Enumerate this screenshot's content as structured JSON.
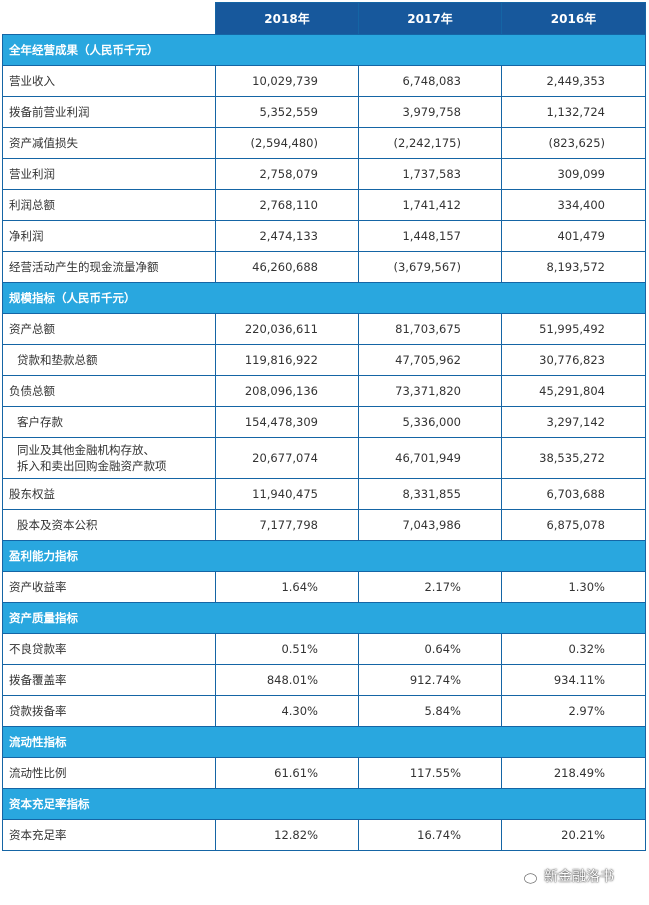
{
  "header": {
    "years": [
      "2018年",
      "2017年",
      "2016年"
    ]
  },
  "sections": [
    {
      "title": "全年经营成果（人民币千元）",
      "rows": [
        {
          "label": "营业收入",
          "values": [
            "10,029,739",
            "6,748,083",
            "2,449,353"
          ]
        },
        {
          "label": "拨备前营业利润",
          "values": [
            "5,352,559",
            "3,979,758",
            "1,132,724"
          ]
        },
        {
          "label": "资产减值损失",
          "values": [
            "(2,594,480)",
            "(2,242,175)",
            "(823,625)"
          ]
        },
        {
          "label": "营业利润",
          "values": [
            "2,758,079",
            "1,737,583",
            "309,099"
          ]
        },
        {
          "label": "利润总额",
          "values": [
            "2,768,110",
            "1,741,412",
            "334,400"
          ]
        },
        {
          "label": "净利润",
          "values": [
            "2,474,133",
            "1,448,157",
            "401,479"
          ]
        },
        {
          "label": "经营活动产生的现金流量净额",
          "values": [
            "46,260,688",
            "(3,679,567)",
            "8,193,572"
          ]
        }
      ]
    },
    {
      "title": "规模指标（人民币千元）",
      "rows": [
        {
          "label": "资产总额",
          "values": [
            "220,036,611",
            "81,703,675",
            "51,995,492"
          ]
        },
        {
          "label": "贷款和垫款总额",
          "indent": true,
          "values": [
            "119,816,922",
            "47,705,962",
            "30,776,823"
          ]
        },
        {
          "label": "负债总额",
          "values": [
            "208,096,136",
            "73,371,820",
            "45,291,804"
          ]
        },
        {
          "label": "客户存款",
          "indent": true,
          "values": [
            "154,478,309",
            "5,336,000",
            "3,297,142"
          ]
        },
        {
          "label": "同业及其他金融机构存放、",
          "label2": "拆入和卖出回购金融资产款项",
          "indent": true,
          "values": [
            "20,677,074",
            "46,701,949",
            "38,535,272"
          ]
        },
        {
          "label": "股东权益",
          "values": [
            "11,940,475",
            "8,331,855",
            "6,703,688"
          ]
        },
        {
          "label": "股本及资本公积",
          "indent": true,
          "values": [
            "7,177,798",
            "7,043,986",
            "6,875,078"
          ]
        }
      ]
    },
    {
      "title": "盈利能力指标",
      "rows": [
        {
          "label": "资产收益率",
          "values": [
            "1.64%",
            "2.17%",
            "1.30%"
          ]
        }
      ]
    },
    {
      "title": "资产质量指标",
      "rows": [
        {
          "label": "不良贷款率",
          "values": [
            "0.51%",
            "0.64%",
            "0.32%"
          ]
        },
        {
          "label": "拨备覆盖率",
          "values": [
            "848.01%",
            "912.74%",
            "934.11%"
          ]
        },
        {
          "label": "贷款拨备率",
          "values": [
            "4.30%",
            "5.84%",
            "2.97%"
          ]
        }
      ]
    },
    {
      "title": "流动性指标",
      "rows": [
        {
          "label": "流动性比例",
          "values": [
            "61.61%",
            "117.55%",
            "218.49%"
          ]
        }
      ]
    },
    {
      "title": "资本充足率指标",
      "rows": [
        {
          "label": "资本充足率",
          "values": [
            "12.82%",
            "16.74%",
            "20.21%"
          ]
        }
      ]
    }
  ],
  "watermark": {
    "text": "新金融洛书",
    "icon": "wechat-icon"
  }
}
